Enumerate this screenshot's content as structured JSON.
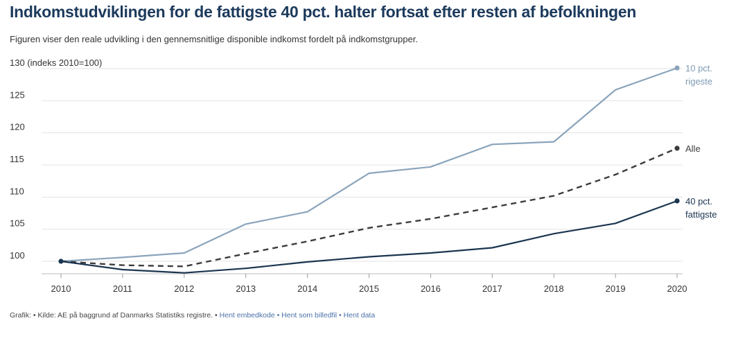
{
  "title": "Indkomstudviklingen for de fattigste 40 pct. halter fortsat efter resten af befolkningen",
  "subtitle": "Figuren viser den reale udvikling i den gennemsnitlige disponible indkomst fordelt på indkomstgrupper.",
  "footer": {
    "prefix": "Grafik: • Kilde: AE på baggrund af Danmarks Statistiks registre. •",
    "link1": "Hent embedkode",
    "link2": "Hent som billedfil",
    "link3": "Hent data"
  },
  "chart_data": {
    "type": "line",
    "ylabel": "(indeks 2010=100)",
    "ylim": [
      97,
      131
    ],
    "yticks": [
      100,
      105,
      110,
      115,
      120,
      125,
      130
    ],
    "grid": true,
    "x": [
      "2010",
      "2011",
      "2012",
      "2013",
      "2014",
      "2015",
      "2016",
      "2017",
      "2018",
      "2019",
      "2020"
    ],
    "series": [
      {
        "name": "10 pct. rigeste",
        "label_lines": [
          "10 pct.",
          "rigeste"
        ],
        "color": "#8aa4bb",
        "dash": false,
        "values": [
          100,
          100.6,
          101.3,
          105.8,
          107.7,
          113.7,
          114.7,
          118.2,
          118.6,
          126.7,
          130.1
        ]
      },
      {
        "name": "Alle",
        "label_lines": [
          "Alle"
        ],
        "color": "#3c3c3c",
        "dash": true,
        "values": [
          100,
          99.4,
          99.2,
          101.2,
          103.1,
          105.2,
          106.6,
          108.4,
          110.2,
          113.5,
          117.6
        ]
      },
      {
        "name": "40 pct. fattigste",
        "label_lines": [
          "40 pct.",
          "fattigste"
        ],
        "color": "#1b3550",
        "dash": false,
        "values": [
          100,
          98.7,
          98.2,
          98.9,
          99.9,
          100.7,
          101.3,
          102.1,
          104.3,
          105.9,
          109.4
        ]
      }
    ]
  }
}
